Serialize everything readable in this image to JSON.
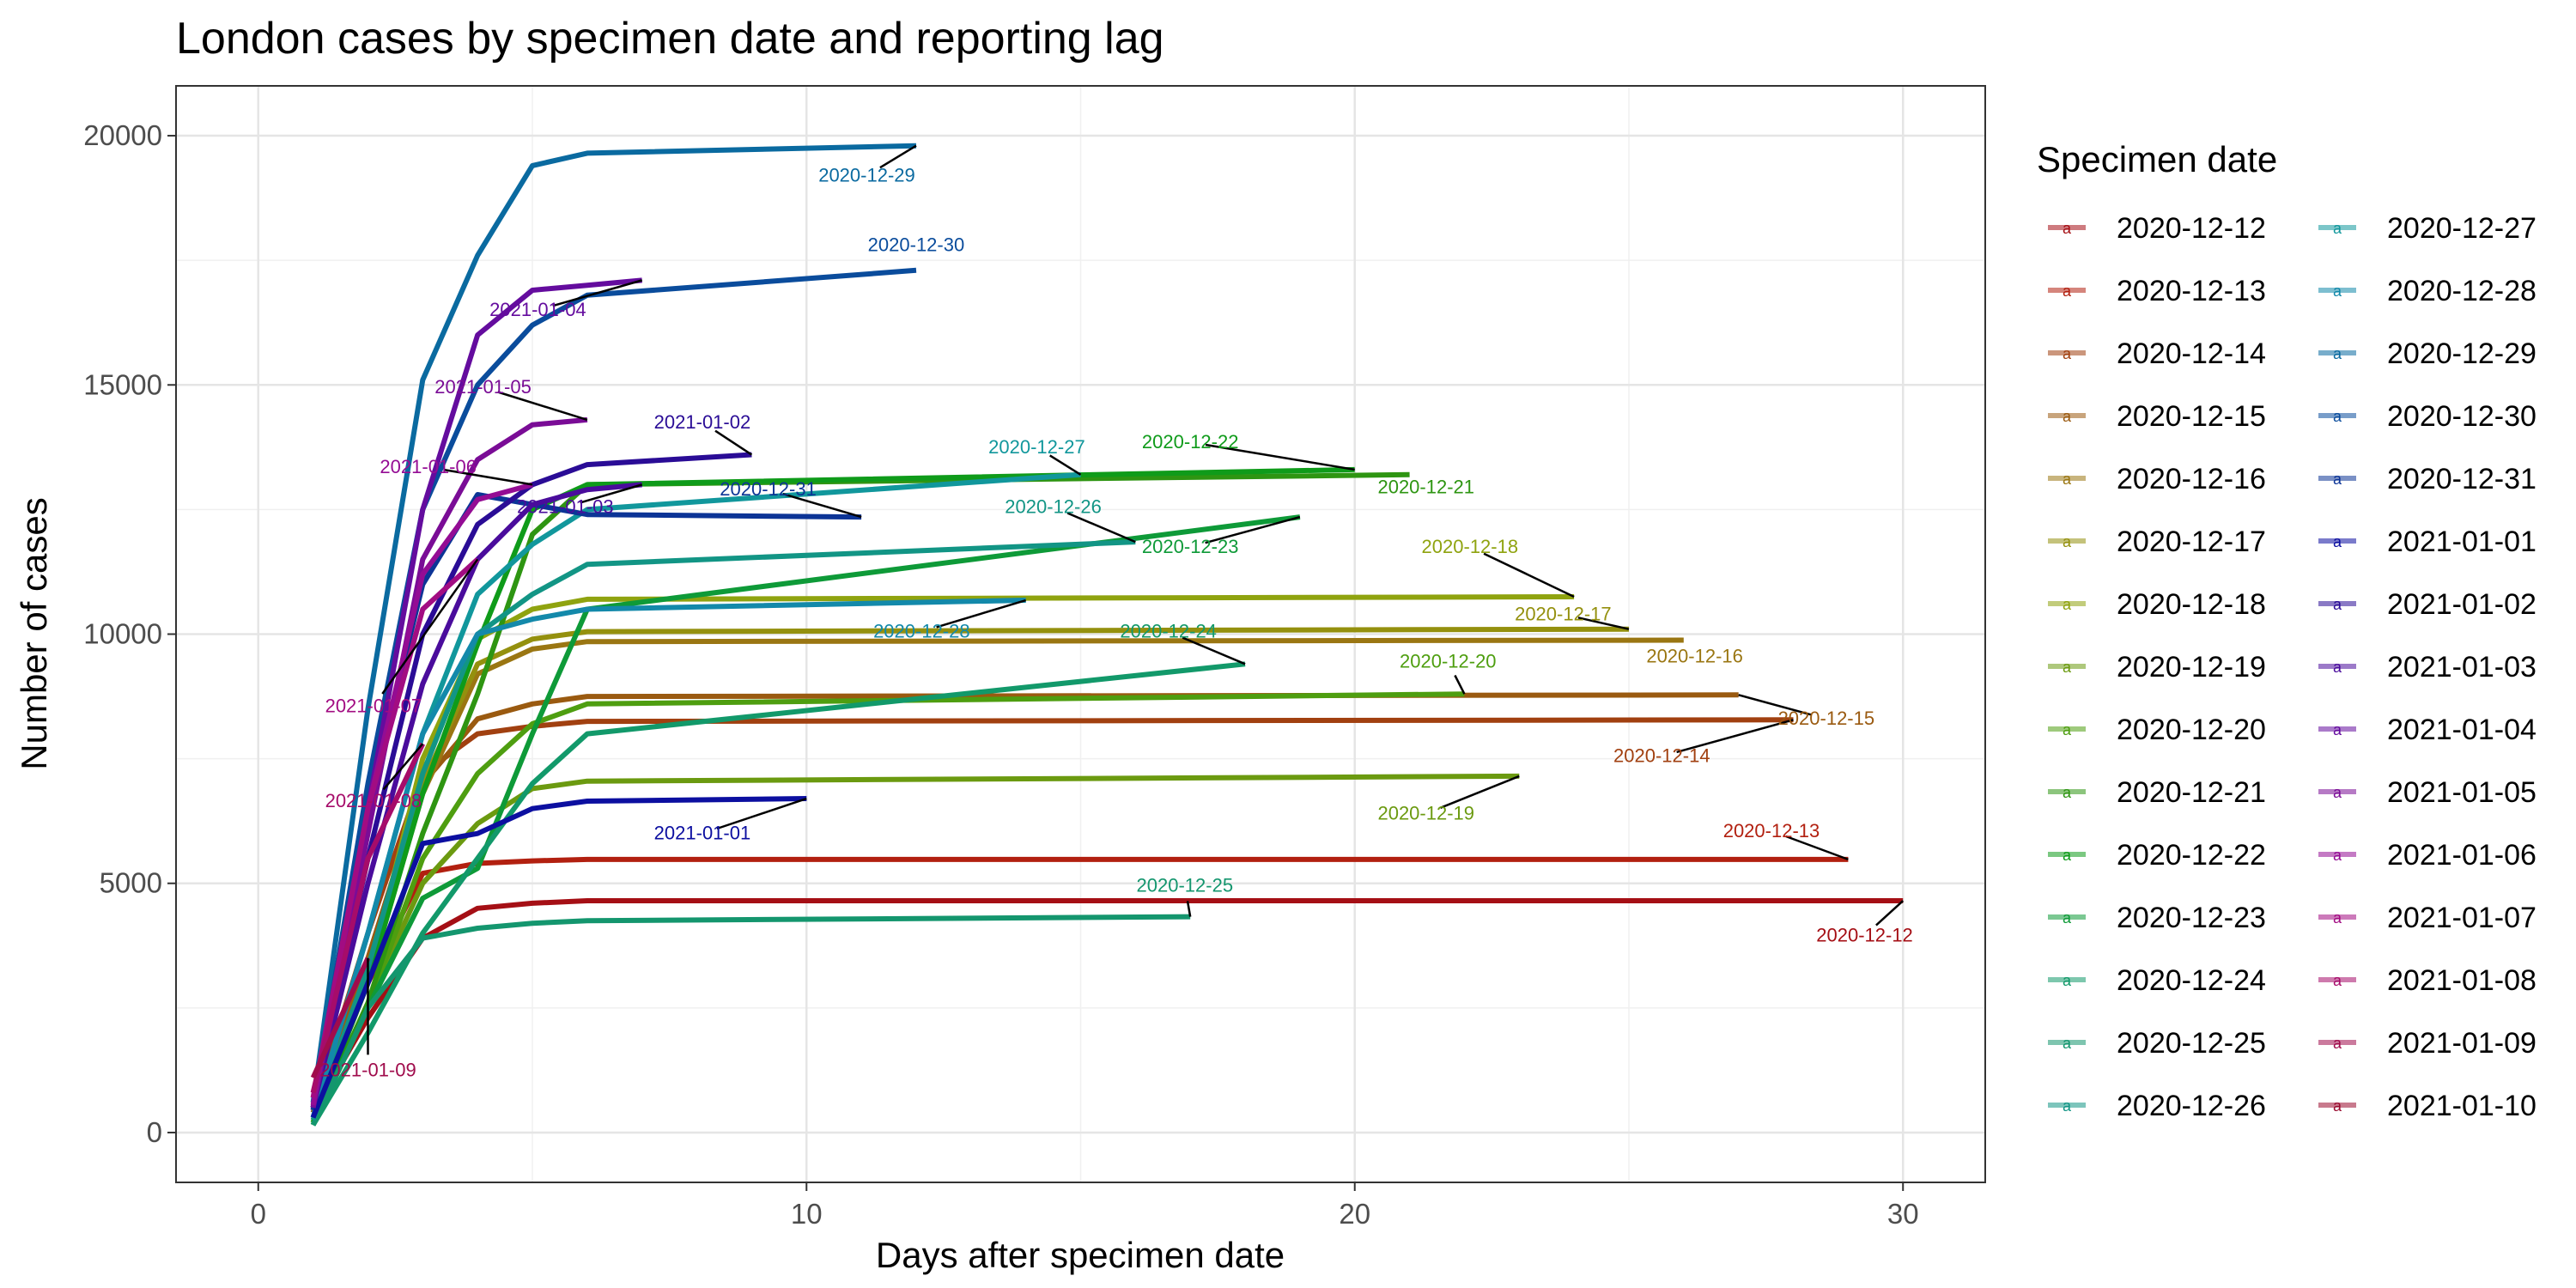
{
  "chart_data": {
    "type": "line",
    "title": "London cases by specimen date and reporting lag",
    "xlabel": "Days after specimen date",
    "ylabel": "Number of cases",
    "xlim": [
      -1.5,
      31.5
    ],
    "ylim": [
      -1000,
      21000
    ],
    "x_ticks": [
      0,
      10,
      20,
      30
    ],
    "y_ticks": [
      0,
      5000,
      10000,
      15000,
      20000
    ],
    "x_tick_labels": [
      "0",
      "10",
      "20",
      "30"
    ],
    "y_tick_labels": [
      "0",
      "5000",
      "10000",
      "15000",
      "20000"
    ],
    "grid": true,
    "legend_position": "right",
    "legend_title": "Specimen date",
    "legend_key_glyph": "a",
    "series": [
      {
        "name": "2020-12-12",
        "color": "#a50f15",
        "x": [
          1,
          2,
          3,
          4,
          5,
          6,
          30
        ],
        "y": [
          400,
          2300,
          3900,
          4500,
          4600,
          4650,
          4650
        ],
        "label_x": 29.3,
        "label_y": 3950
      },
      {
        "name": "2020-12-13",
        "color": "#b22010",
        "x": [
          1,
          2,
          3,
          4,
          5,
          6,
          29
        ],
        "y": [
          450,
          3000,
          5200,
          5400,
          5450,
          5480,
          5480
        ],
        "label_x": 27.6,
        "label_y": 6050
      },
      {
        "name": "2020-12-14",
        "color": "#a14010",
        "x": [
          1,
          2,
          3,
          4,
          5,
          6,
          28
        ],
        "y": [
          450,
          4000,
          7200,
          8000,
          8150,
          8250,
          8280
        ],
        "label_x": 25.6,
        "label_y": 7550
      },
      {
        "name": "2020-12-15",
        "color": "#9a5a10",
        "x": [
          1,
          2,
          3,
          4,
          5,
          6,
          27
        ],
        "y": [
          400,
          3500,
          7000,
          8300,
          8600,
          8750,
          8780
        ],
        "label_x": 28.6,
        "label_y": 8300
      },
      {
        "name": "2020-12-16",
        "color": "#9a7612",
        "x": [
          1,
          2,
          3,
          4,
          5,
          6,
          26
        ],
        "y": [
          250,
          3000,
          6800,
          9200,
          9700,
          9850,
          9880
        ],
        "label_x": 26.2,
        "label_y": 9550
      },
      {
        "name": "2020-12-17",
        "color": "#94900e",
        "x": [
          1,
          2,
          3,
          4,
          5,
          6,
          25
        ],
        "y": [
          200,
          3000,
          7000,
          9400,
          9900,
          10050,
          10100
        ],
        "label_x": 23.8,
        "label_y": 10400
      },
      {
        "name": "2020-12-18",
        "color": "#8fa30f",
        "x": [
          1,
          2,
          3,
          4,
          5,
          6,
          24
        ],
        "y": [
          200,
          3100,
          7500,
          9900,
          10500,
          10700,
          10750
        ],
        "label_x": 22.1,
        "label_y": 11750
      },
      {
        "name": "2020-12-19",
        "color": "#6b9a10",
        "x": [
          1,
          2,
          3,
          4,
          5,
          6,
          23
        ],
        "y": [
          150,
          2600,
          5000,
          6200,
          6900,
          7050,
          7150
        ],
        "label_x": 21.3,
        "label_y": 6400
      },
      {
        "name": "2020-12-20",
        "color": "#4e9e10",
        "x": [
          1,
          2,
          3,
          4,
          5,
          6,
          22
        ],
        "y": [
          150,
          2500,
          5500,
          7200,
          8200,
          8600,
          8800
        ],
        "label_x": 21.7,
        "label_y": 9450
      },
      {
        "name": "2020-12-21",
        "color": "#2e9512",
        "x": [
          1,
          2,
          3,
          4,
          5,
          6,
          21
        ],
        "y": [
          200,
          2600,
          6000,
          8800,
          12000,
          13000,
          13200
        ],
        "label_x": 21.3,
        "label_y": 12950
      },
      {
        "name": "2020-12-22",
        "color": "#0f9b1a",
        "x": [
          1,
          2,
          3,
          4,
          5,
          6,
          20
        ],
        "y": [
          200,
          3000,
          6800,
          9800,
          12500,
          13000,
          13300
        ],
        "label_x": 17.0,
        "label_y": 13850
      },
      {
        "name": "2020-12-23",
        "color": "#0e9a38",
        "x": [
          1,
          2,
          3,
          4,
          5,
          6,
          19
        ],
        "y": [
          150,
          2500,
          4700,
          5300,
          8000,
          10500,
          12350
        ],
        "label_x": 17.0,
        "label_y": 11750
      },
      {
        "name": "2020-12-24",
        "color": "#12996a",
        "x": [
          1,
          2,
          3,
          4,
          5,
          6,
          18
        ],
        "y": [
          150,
          2000,
          4000,
          5500,
          7000,
          8000,
          9400
        ],
        "label_x": 16.6,
        "label_y": 10050
      },
      {
        "name": "2020-12-25",
        "color": "#14966e",
        "x": [
          1,
          2,
          3,
          4,
          5,
          6,
          17
        ],
        "y": [
          150,
          2500,
          3900,
          4100,
          4200,
          4250,
          4330
        ],
        "label_x": 16.9,
        "label_y": 4950
      },
      {
        "name": "2020-12-26",
        "color": "#129585",
        "x": [
          1,
          2,
          3,
          4,
          5,
          6,
          16
        ],
        "y": [
          250,
          3300,
          7200,
          10000,
          10800,
          11400,
          11850
        ],
        "label_x": 14.5,
        "label_y": 12550
      },
      {
        "name": "2020-12-27",
        "color": "#11979c",
        "x": [
          1,
          2,
          3,
          4,
          5,
          6,
          15
        ],
        "y": [
          300,
          4000,
          8000,
          10800,
          11800,
          12500,
          13200
        ],
        "label_x": 14.2,
        "label_y": 13750
      },
      {
        "name": "2020-12-28",
        "color": "#1389aa",
        "x": [
          1,
          2,
          3,
          4,
          5,
          6,
          14
        ],
        "y": [
          300,
          4000,
          8000,
          10000,
          10300,
          10500,
          10680
        ],
        "label_x": 12.1,
        "label_y": 10050
      },
      {
        "name": "2020-12-29",
        "color": "#0a6aa0",
        "x": [
          1,
          2,
          3,
          4,
          5,
          6,
          12
        ],
        "y": [
          600,
          8500,
          15100,
          17600,
          19400,
          19650,
          19800
        ],
        "label_x": 11.1,
        "label_y": 19200
      },
      {
        "name": "2020-12-30",
        "color": "#0a4c9c",
        "x": [
          1,
          2,
          3,
          4,
          5,
          6,
          12
        ],
        "y": [
          500,
          7000,
          12500,
          15000,
          16200,
          16800,
          17300
        ],
        "label_x": 12.0,
        "label_y": 17800
      },
      {
        "name": "2020-12-31",
        "color": "#0c3496",
        "x": [
          1,
          2,
          3,
          4,
          5,
          6,
          11
        ],
        "y": [
          450,
          6500,
          11000,
          12800,
          12600,
          12400,
          12350
        ],
        "label_x": 9.3,
        "label_y": 12900
      },
      {
        "name": "2021-01-01",
        "color": "#0c0fa0",
        "x": [
          1,
          2,
          3,
          4,
          5,
          6,
          10
        ],
        "y": [
          300,
          3000,
          5800,
          6000,
          6500,
          6650,
          6700
        ],
        "label_x": 8.1,
        "label_y": 6000
      },
      {
        "name": "2021-01-02",
        "color": "#2a0c96",
        "x": [
          1,
          2,
          3,
          4,
          5,
          6,
          9
        ],
        "y": [
          500,
          5500,
          10000,
          12200,
          13000,
          13400,
          13600
        ],
        "label_x": 8.1,
        "label_y": 14250
      },
      {
        "name": "2021-01-03",
        "color": "#4a0c9c",
        "x": [
          1,
          2,
          3,
          4,
          5,
          6,
          7
        ],
        "y": [
          500,
          5000,
          9000,
          11500,
          12600,
          12900,
          13000
        ],
        "label_x": 5.6,
        "label_y": 12550
      },
      {
        "name": "2021-01-04",
        "color": "#640c9e",
        "x": [
          1,
          2,
          3,
          4,
          5,
          6,
          7
        ],
        "y": [
          500,
          6500,
          12500,
          16000,
          16900,
          17000,
          17100
        ],
        "label_x": 5.1,
        "label_y": 16500
      },
      {
        "name": "2021-01-05",
        "color": "#7a0c96",
        "x": [
          1,
          2,
          3,
          4,
          5,
          6
        ],
        "y": [
          500,
          6000,
          11500,
          13500,
          14200,
          14300
        ],
        "label_x": 4.1,
        "label_y": 14950
      },
      {
        "name": "2021-01-06",
        "color": "#940c94",
        "x": [
          1,
          2,
          3,
          4,
          5
        ],
        "y": [
          550,
          6500,
          11200,
          12700,
          13000
        ],
        "label_x": 3.1,
        "label_y": 13350
      },
      {
        "name": "2021-01-07",
        "color": "#a20c82",
        "x": [
          1,
          2,
          3,
          4
        ],
        "y": [
          700,
          6500,
          10500,
          11500
        ],
        "label_x": 2.1,
        "label_y": 8550
      },
      {
        "name": "2021-01-08",
        "color": "#a60c6a",
        "x": [
          1,
          2,
          3
        ],
        "y": [
          800,
          5500,
          7800
        ],
        "label_x": 2.1,
        "label_y": 6650
      },
      {
        "name": "2021-01-09",
        "color": "#a00c4c",
        "x": [
          1,
          2
        ],
        "y": [
          1100,
          3500
        ],
        "label_x": 2.0,
        "label_y": 1250
      },
      {
        "name": "2021-01-10",
        "color": "#9a0c30",
        "x": [
          1
        ],
        "y": [
          900
        ],
        "label_x": null,
        "label_y": null
      }
    ]
  }
}
